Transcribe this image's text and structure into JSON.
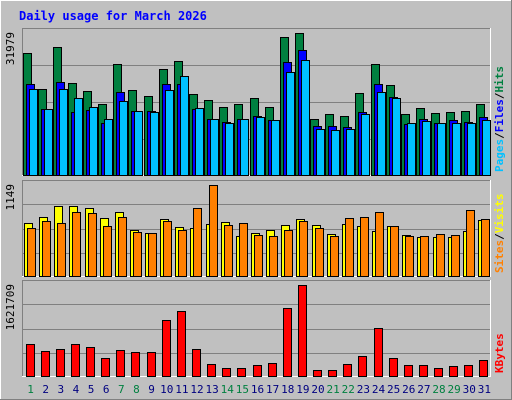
{
  "title": "Daily usage for March 2026",
  "colors": {
    "background": "#c0c0c0",
    "panel": "#c0c0c0",
    "title": "#0000ff",
    "hits": "#008040",
    "files": "#0000ff",
    "pages": "#00c0ff",
    "visits": "#ffff00",
    "sites": "#ff8000",
    "kbytes": "#ff0000",
    "weekend_day": "#008040",
    "weekday": "#000080"
  },
  "chart_data": [
    {
      "type": "bar",
      "panel": "hits-files-pages",
      "y_tick_label": "31979",
      "ylim": [
        0,
        31979
      ],
      "legend": {
        "placement": "right-vertical",
        "labels": [
          "Pages",
          "Files",
          "Hits"
        ],
        "separator": "/"
      },
      "categories": [
        "1",
        "2",
        "3",
        "4",
        "5",
        "6",
        "7",
        "8",
        "9",
        "10",
        "11",
        "12",
        "13",
        "14",
        "15",
        "16",
        "17",
        "18",
        "19",
        "20",
        "21",
        "22",
        "23",
        "24",
        "25",
        "26",
        "27",
        "28",
        "29",
        "30",
        "31"
      ],
      "series": [
        {
          "name": "Hits",
          "color": "#008040",
          "values": [
            27400,
            19400,
            28900,
            20700,
            19000,
            16000,
            25100,
            19200,
            17700,
            23900,
            25700,
            18300,
            16900,
            15400,
            16100,
            17400,
            15400,
            31100,
            31900,
            12500,
            13700,
            13300,
            18500,
            25100,
            20200,
            13800,
            15000,
            14000,
            14200,
            14400,
            16100
          ]
        },
        {
          "name": "Files",
          "color": "#0000ff",
          "values": [
            20600,
            14900,
            20900,
            14300,
            14600,
            11600,
            18800,
            14500,
            14400,
            20400,
            20600,
            14800,
            12700,
            12000,
            12700,
            13200,
            12400,
            25400,
            28100,
            11000,
            11100,
            10800,
            14100,
            20400,
            17600,
            11500,
            12700,
            11700,
            12400,
            11900,
            13000
          ]
        },
        {
          "name": "Pages",
          "color": "#00c0ff",
          "values": [
            19400,
            14900,
            19400,
            17300,
            15300,
            12700,
            16700,
            14500,
            14300,
            19100,
            22200,
            15100,
            12500,
            11800,
            12700,
            13000,
            12400,
            23300,
            25800,
            10300,
            10200,
            10400,
            13700,
            18800,
            17400,
            11600,
            12100,
            11700,
            11700,
            11600,
            12400
          ]
        }
      ]
    },
    {
      "type": "bar",
      "panel": "visits-sites",
      "y_tick_label": "1149",
      "ylim": [
        0,
        1149
      ],
      "legend": {
        "placement": "right-vertical",
        "labels": [
          "Sites",
          "Visits"
        ],
        "separator": "/"
      },
      "categories": [
        "1",
        "2",
        "3",
        "4",
        "5",
        "6",
        "7",
        "8",
        "9",
        "10",
        "11",
        "12",
        "13",
        "14",
        "15",
        "16",
        "17",
        "18",
        "19",
        "20",
        "21",
        "22",
        "23",
        "24",
        "25",
        "26",
        "27",
        "28",
        "29",
        "30",
        "31"
      ],
      "series": [
        {
          "name": "Visits",
          "color": "#ffff00",
          "values": [
            670,
            740,
            880,
            880,
            860,
            730,
            810,
            580,
            540,
            720,
            620,
            600,
            660,
            680,
            510,
            540,
            580,
            640,
            720,
            640,
            530,
            660,
            630,
            570,
            630,
            520,
            490,
            490,
            490,
            570,
            710
          ]
        },
        {
          "name": "Sites",
          "color": "#ff8000",
          "values": [
            610,
            700,
            670,
            810,
            790,
            630,
            750,
            550,
            540,
            690,
            580,
            860,
            1149,
            640,
            670,
            520,
            510,
            580,
            690,
            610,
            500,
            730,
            740,
            810,
            630,
            500,
            500,
            530,
            520,
            830,
            720
          ]
        }
      ]
    },
    {
      "type": "bar",
      "panel": "kbytes",
      "y_tick_label": "1621709",
      "ylim": [
        0,
        1621709
      ],
      "legend": {
        "placement": "right-vertical",
        "labels": [
          "KBytes"
        ],
        "separator": ""
      },
      "categories": [
        "1",
        "2",
        "3",
        "4",
        "5",
        "6",
        "7",
        "8",
        "9",
        "10",
        "11",
        "12",
        "13",
        "14",
        "15",
        "16",
        "17",
        "18",
        "19",
        "20",
        "21",
        "22",
        "23",
        "24",
        "25",
        "26",
        "27",
        "28",
        "29",
        "30",
        "31"
      ],
      "series": [
        {
          "name": "KBytes",
          "color": "#ff0000",
          "values": [
            570000,
            440000,
            490000,
            570000,
            520000,
            320000,
            460000,
            430000,
            430000,
            1000000,
            1150000,
            480000,
            210000,
            150000,
            150000,
            200000,
            240000,
            1220000,
            1621709,
            110000,
            110000,
            210000,
            350000,
            850000,
            320000,
            200000,
            190000,
            150000,
            170000,
            200000,
            290000
          ]
        }
      ]
    }
  ],
  "x_axis": {
    "labels": [
      "1",
      "2",
      "3",
      "4",
      "5",
      "6",
      "7",
      "8",
      "9",
      "10",
      "11",
      "12",
      "13",
      "14",
      "15",
      "16",
      "17",
      "18",
      "19",
      "20",
      "21",
      "22",
      "23",
      "24",
      "25",
      "26",
      "27",
      "28",
      "29",
      "30",
      "31"
    ],
    "weekend": [
      1,
      7,
      8,
      14,
      15,
      21,
      22,
      28,
      29
    ]
  }
}
